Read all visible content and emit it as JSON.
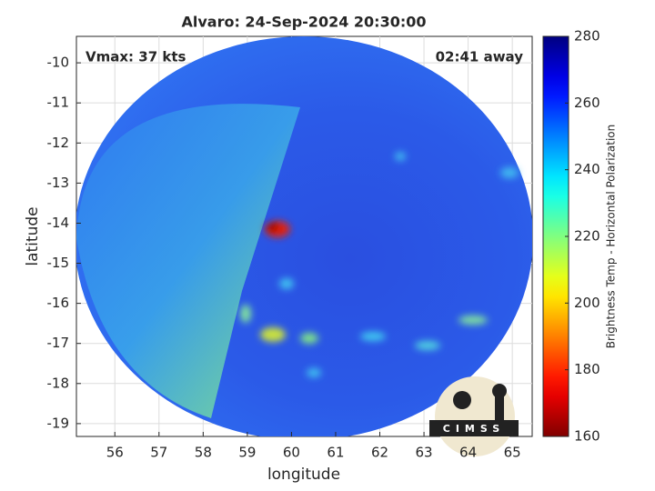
{
  "chart_data": {
    "type": "heatmap",
    "title": "Alvaro: 24-Sep-2024 20:30:00",
    "xlabel": "longitude",
    "ylabel": "latitude",
    "xlim": [
      55.13,
      65.45
    ],
    "ylim": [
      -19.32,
      -9.34
    ],
    "xticks": [
      56,
      57,
      58,
      59,
      60,
      61,
      62,
      63,
      64,
      65
    ],
    "yticks": [
      -19,
      -18,
      -17,
      -16,
      -15,
      -14,
      -13,
      -12,
      -11,
      -10
    ],
    "grid": true,
    "annotations": [
      "Vmax: 37 kts",
      "02:41 away"
    ],
    "colorbar": {
      "label": "Brightness Temp - Horizontal Polarization",
      "lim": [
        160,
        280
      ],
      "ticks": [
        160,
        180,
        200,
        220,
        240,
        260,
        280
      ],
      "colormap": "jet_r"
    },
    "logo": "CIMSS"
  }
}
